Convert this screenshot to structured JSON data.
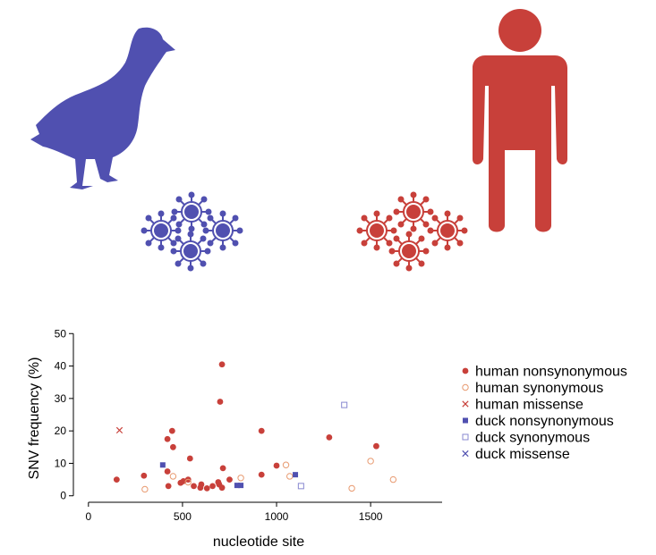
{
  "colors": {
    "duck": "#5050b0",
    "human": "#c8403a",
    "human_open": "#e89a70",
    "duck_open": "#8888d0"
  },
  "icons": [
    "duck-icon",
    "human-icon",
    "virus-icon"
  ],
  "chart_data": {
    "type": "scatter",
    "title": "",
    "xlabel": "nucleotide site",
    "ylabel": "SNV frequency (%)",
    "xlim": [
      -80,
      1880
    ],
    "ylim": [
      -2,
      52
    ],
    "xticks": [
      0,
      500,
      1000,
      1500
    ],
    "yticks": [
      0,
      10,
      20,
      30,
      40,
      50
    ],
    "grid": false,
    "legend": "right",
    "series": [
      {
        "name": "human nonsynonymous",
        "marker": "filled-circle",
        "color": "#c8403a",
        "points": [
          [
            150,
            5
          ],
          [
            295,
            6.2
          ],
          [
            420,
            17.5
          ],
          [
            420,
            7.5
          ],
          [
            425,
            3
          ],
          [
            445,
            20
          ],
          [
            450,
            15
          ],
          [
            490,
            4
          ],
          [
            505,
            4.5
          ],
          [
            530,
            5
          ],
          [
            540,
            11.5
          ],
          [
            560,
            3
          ],
          [
            595,
            2.5
          ],
          [
            600,
            3.5
          ],
          [
            630,
            2.3
          ],
          [
            660,
            3
          ],
          [
            690,
            4.2
          ],
          [
            695,
            3.5
          ],
          [
            700,
            29
          ],
          [
            710,
            40.5
          ],
          [
            710,
            2.5
          ],
          [
            715,
            8.5
          ],
          [
            750,
            5
          ],
          [
            920,
            20
          ],
          [
            920,
            6.5
          ],
          [
            1000,
            9.3
          ],
          [
            1280,
            18
          ],
          [
            1530,
            15.3
          ]
        ]
      },
      {
        "name": "human synonymous",
        "marker": "open-circle",
        "color": "#e89a70",
        "points": [
          [
            300,
            2
          ],
          [
            450,
            6
          ],
          [
            530,
            4.2
          ],
          [
            810,
            5.5
          ],
          [
            1050,
            9.5
          ],
          [
            1070,
            6
          ],
          [
            1400,
            2.3
          ],
          [
            1500,
            10.7
          ],
          [
            1620,
            5
          ]
        ]
      },
      {
        "name": "human missense",
        "marker": "cross",
        "color": "#c8403a",
        "points": [
          [
            165,
            20.2
          ]
        ]
      },
      {
        "name": "duck nonsynonymous",
        "marker": "filled-square",
        "color": "#5050b0",
        "points": [
          [
            395,
            9.5
          ],
          [
            790,
            3.2
          ],
          [
            810,
            3.2
          ],
          [
            1100,
            6.5
          ]
        ]
      },
      {
        "name": "duck synonymous",
        "marker": "open-square",
        "color": "#8888d0",
        "points": [
          [
            1130,
            3
          ],
          [
            1360,
            28
          ]
        ]
      },
      {
        "name": "duck missense",
        "marker": "cross",
        "color": "#5050b0",
        "points": []
      }
    ]
  }
}
